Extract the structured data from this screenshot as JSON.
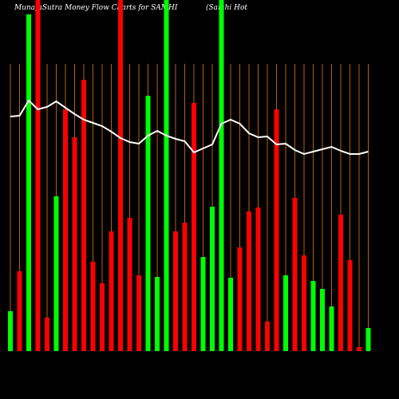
{
  "chart_data": {
    "type": "bar",
    "title": "MunafaSutra  Money Flow  Charts for SAMHI",
    "subtitle": "(Samhi Hot",
    "categories": [
      null,
      null,
      null,
      null,
      null,
      null,
      null,
      null,
      null,
      null,
      null,
      null,
      null,
      null,
      null,
      null,
      null,
      null,
      null,
      null,
      null,
      null,
      null,
      null,
      null,
      null,
      null,
      null,
      null,
      null,
      null,
      null,
      null,
      null,
      null,
      null,
      null,
      null,
      null,
      null
    ],
    "bars": {
      "values": [
        50,
        100,
        422,
        440,
        42,
        194,
        303,
        268,
        340,
        112,
        85,
        150,
        440,
        167,
        95,
        320,
        93,
        440,
        150,
        161,
        311,
        118,
        181,
        440,
        92,
        130,
        175,
        180,
        37,
        303,
        95,
        192,
        120,
        88,
        78,
        56,
        171,
        114,
        5,
        29
      ],
      "colors": [
        "#00ff00",
        "#ff0000",
        "#00ff00",
        "#ff0000",
        "#ff0000",
        "#00ff00",
        "#ff0000",
        "#ff0000",
        "#ff0000",
        "#ff0000",
        "#ff0000",
        "#ff0000",
        "#ff0000",
        "#ff0000",
        "#ff0000",
        "#00ff00",
        "#00ff00",
        "#00ff00",
        "#ff0000",
        "#ff0000",
        "#ff0000",
        "#00ff00",
        "#00ff00",
        "#00ff00",
        "#00ff00",
        "#ff0000",
        "#ff0000",
        "#ff0000",
        "#ff0000",
        "#ff0000",
        "#00ff00",
        "#ff0000",
        "#ff0000",
        "#00ff00",
        "#00ff00",
        "#00ff00",
        "#ff0000",
        "#ff0000",
        "#ff0000",
        "#00ff00"
      ]
    },
    "line": {
      "color": "#ffffff",
      "values": [
        294,
        295,
        314,
        303,
        306,
        313,
        305,
        297,
        290,
        286,
        282,
        275,
        267,
        262,
        260,
        270,
        276,
        270,
        266,
        263,
        249,
        254,
        259,
        285,
        290,
        285,
        273,
        268,
        269,
        259,
        260,
        252,
        247,
        250,
        253,
        256,
        251,
        247,
        247,
        250
      ]
    },
    "ylim": [
      0,
      440
    ],
    "grid": true,
    "grid_color": "#b8600a"
  }
}
